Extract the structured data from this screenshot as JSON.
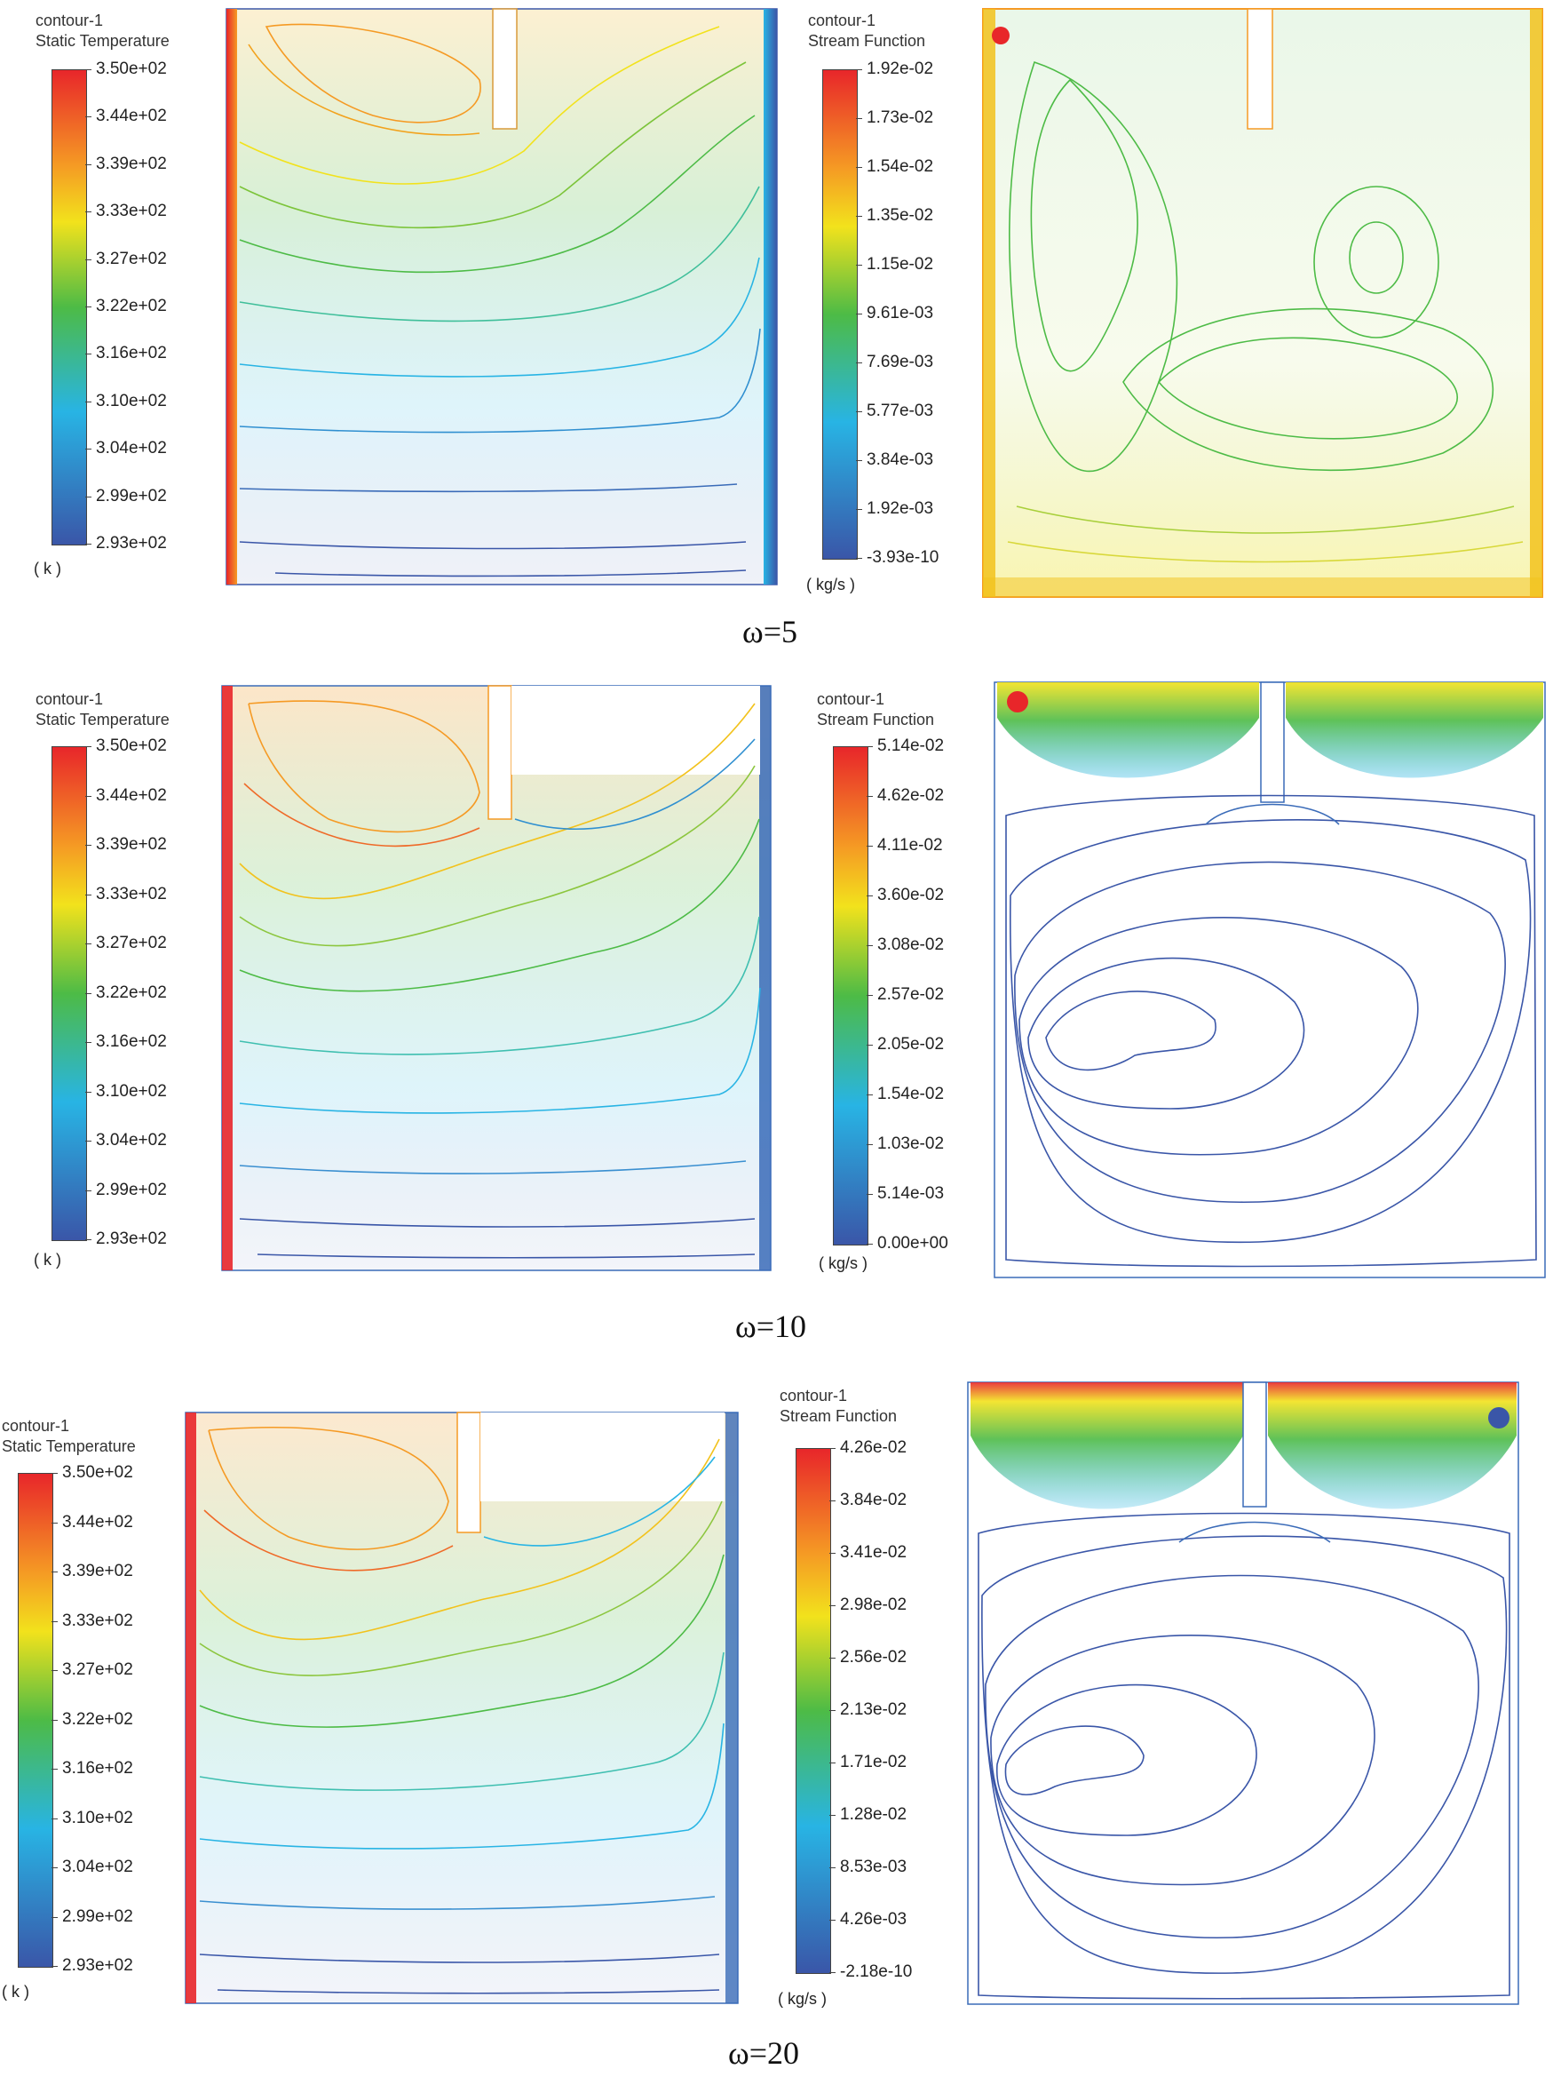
{
  "rows": [
    {
      "omega_label": "ω=5",
      "temperature": {
        "title_line1": "contour-1",
        "title_line2": "Static Temperature",
        "ticks": [
          "3.50e+02",
          "3.44e+02",
          "3.39e+02",
          "3.33e+02",
          "3.27e+02",
          "3.22e+02",
          "3.16e+02",
          "3.10e+02",
          "3.04e+02",
          "2.99e+02",
          "2.93e+02"
        ],
        "unit": "( k )"
      },
      "stream": {
        "title_line1": "contour-1",
        "title_line2": "Stream Function",
        "ticks": [
          "1.92e-02",
          "1.73e-02",
          "1.54e-02",
          "1.35e-02",
          "1.15e-02",
          "9.61e-03",
          "7.69e-03",
          "5.77e-03",
          "3.84e-03",
          "1.92e-03",
          "-3.93e-10"
        ],
        "unit": "( kg/s )"
      }
    },
    {
      "omega_label": "ω=10",
      "temperature": {
        "title_line1": "contour-1",
        "title_line2": "Static Temperature",
        "ticks": [
          "3.50e+02",
          "3.44e+02",
          "3.39e+02",
          "3.33e+02",
          "3.27e+02",
          "3.22e+02",
          "3.16e+02",
          "3.10e+02",
          "3.04e+02",
          "2.99e+02",
          "2.93e+02"
        ],
        "unit": "( k )"
      },
      "stream": {
        "title_line1": "contour-1",
        "title_line2": "Stream Function",
        "ticks": [
          "5.14e-02",
          "4.62e-02",
          "4.11e-02",
          "3.60e-02",
          "3.08e-02",
          "2.57e-02",
          "2.05e-02",
          "1.54e-02",
          "1.03e-02",
          "5.14e-03",
          "0.00e+00"
        ],
        "unit": "( kg/s )"
      }
    },
    {
      "omega_label": "ω=20",
      "temperature": {
        "title_line1": "contour-1",
        "title_line2": "Static Temperature",
        "ticks": [
          "3.50e+02",
          "3.44e+02",
          "3.39e+02",
          "3.33e+02",
          "3.27e+02",
          "3.22e+02",
          "3.16e+02",
          "3.10e+02",
          "3.04e+02",
          "2.99e+02",
          "2.93e+02"
        ],
        "unit": "( k )"
      },
      "stream": {
        "title_line1": "contour-1",
        "title_line2": "Stream Function",
        "ticks": [
          "4.26e-02",
          "3.84e-02",
          "3.41e-02",
          "2.98e-02",
          "2.56e-02",
          "2.13e-02",
          "1.71e-02",
          "1.28e-02",
          "8.53e-03",
          "4.26e-03",
          "-2.18e-10"
        ],
        "unit": "( kg/s )"
      }
    }
  ],
  "colors": {
    "hot": "#e8262a",
    "orange": "#f59a24",
    "yellow": "#f2e21c",
    "green": "#4dbb46",
    "cyan": "#28b4e4",
    "blue": "#3a56a8",
    "outline_blue": "#3a6bb8",
    "outline_orange": "#d99a3a"
  }
}
